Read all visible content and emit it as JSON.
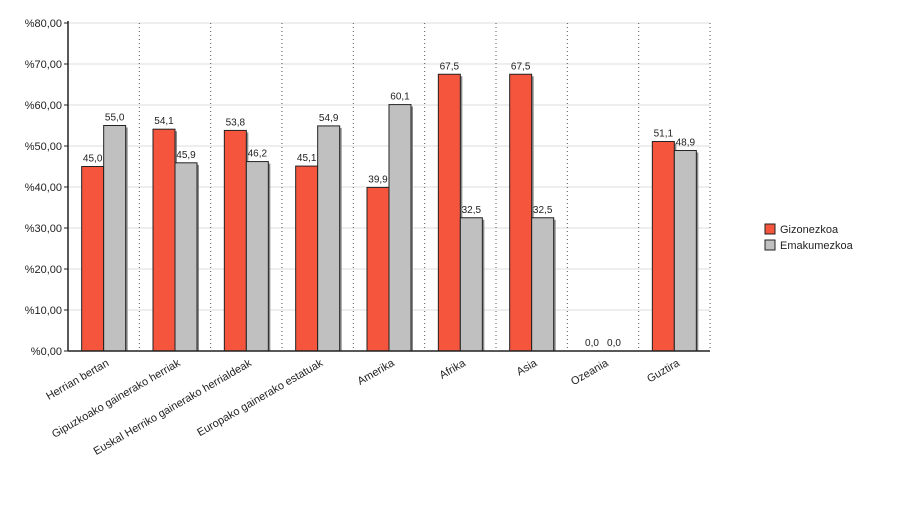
{
  "chart_data": {
    "type": "bar",
    "categories": [
      "Herrian bertan",
      "Gipuzkoako gainerako herriak",
      "Euskal Herriko gainerako herrialdeak",
      "Europako gainerako estatuak",
      "Amerika",
      "Afrika",
      "Asia",
      "Ozeania",
      "Guztira"
    ],
    "series": [
      {
        "name": "Gizonezkoa",
        "color": "#f4553c",
        "values": [
          45.0,
          54.1,
          53.8,
          45.1,
          39.9,
          67.5,
          67.5,
          0.0,
          51.1
        ],
        "labels": [
          "45,0",
          "54,1",
          "53,8",
          "45,1",
          "39,9",
          "67,5",
          "67,5",
          "0,0",
          "51,1"
        ]
      },
      {
        "name": "Emakumezkoa",
        "color": "#c0c0c0",
        "values": [
          55.0,
          45.9,
          46.2,
          54.9,
          60.1,
          32.5,
          32.5,
          0.0,
          48.9
        ],
        "labels": [
          "55,0",
          "45,9",
          "46,2",
          "54,9",
          "60,1",
          "32,5",
          "32,5",
          "0,0",
          "48,9"
        ]
      }
    ],
    "ylim": [
      0,
      80
    ],
    "yticks": [
      0,
      10,
      20,
      30,
      40,
      50,
      60,
      70,
      80
    ],
    "ytick_labels": [
      "%0,00",
      "%10,00",
      "%20,00",
      "%30,00",
      "%40,00",
      "%50,00",
      "%60,00",
      "%70,00",
      "%80,00"
    ],
    "grid": true,
    "legend_position": "right"
  }
}
